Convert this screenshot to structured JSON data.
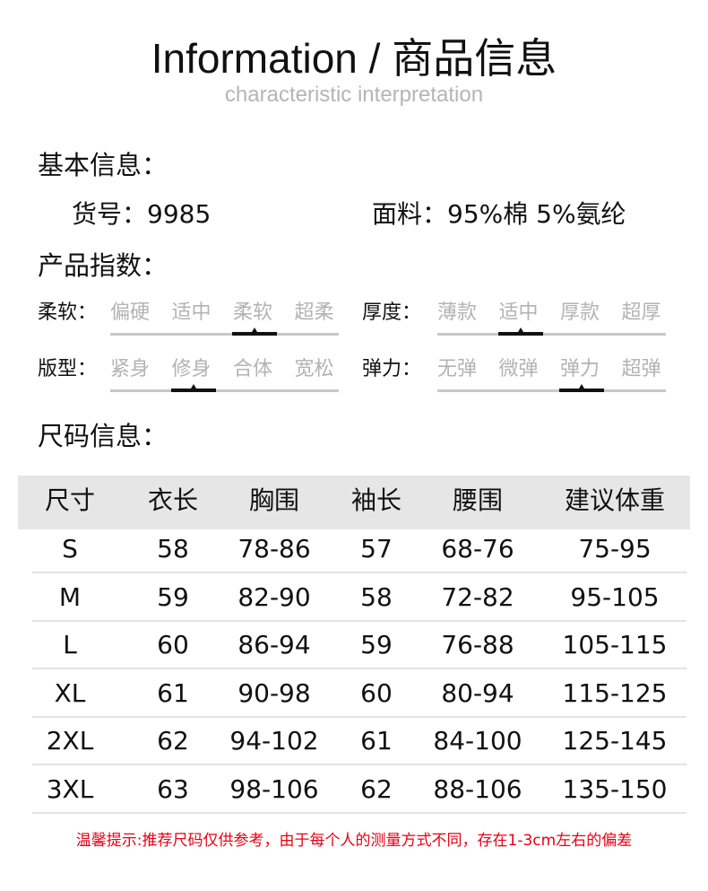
{
  "header": {
    "title": "Information / 商品信息",
    "subtitle": "characteristic interpretation"
  },
  "basic": {
    "heading": "基本信息：",
    "item_no": "货号：9985",
    "fabric": "面料：95%棉 5%氨纶"
  },
  "index": {
    "heading": "产品指数：",
    "scales": [
      {
        "label": "柔软：",
        "options": [
          "偏硬",
          "适中",
          "柔软",
          "超柔"
        ],
        "selected": 2
      },
      {
        "label": "厚度：",
        "options": [
          "薄款",
          "适中",
          "厚款",
          "超厚"
        ],
        "selected": 1
      },
      {
        "label": "版型：",
        "options": [
          "紧身",
          "修身",
          "合体",
          "宽松"
        ],
        "selected": 1
      },
      {
        "label": "弹力：",
        "options": [
          "无弹",
          "微弹",
          "弹力",
          "超弹"
        ],
        "selected": 2
      }
    ]
  },
  "size": {
    "heading": "尺码信息：",
    "columns": [
      "尺寸",
      "衣长",
      "胸围",
      "袖长",
      "腰围",
      "建议体重"
    ],
    "rows": [
      [
        "S",
        "58",
        "78-86",
        "57",
        "68-76",
        "75-95"
      ],
      [
        "M",
        "59",
        "82-90",
        "58",
        "72-82",
        "95-105"
      ],
      [
        "L",
        "60",
        "86-94",
        "59",
        "76-88",
        "105-115"
      ],
      [
        "XL",
        "61",
        "90-98",
        "60",
        "80-94",
        "115-125"
      ],
      [
        "2XL",
        "62",
        "94-102",
        "61",
        "84-100",
        "125-145"
      ],
      [
        "3XL",
        "63",
        "98-106",
        "62",
        "88-106",
        "135-150"
      ]
    ]
  },
  "note": "温馨提示:推荐尺码仅供参考，由于每个人的测量方式不同，存在1-3cm左右的偏差",
  "colors": {
    "note": "#e60012",
    "header_bg": "#e6e6e6",
    "inactive_option": "#b3b3b3"
  }
}
